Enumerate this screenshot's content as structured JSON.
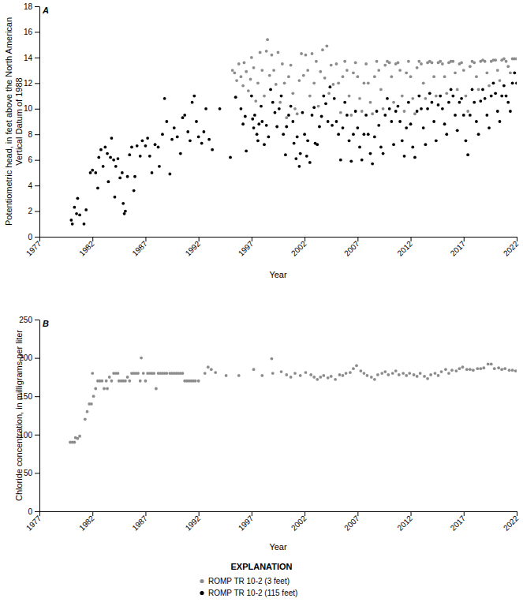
{
  "chart_data": [
    {
      "type": "scatter",
      "title": "A",
      "x_label": "Year",
      "y_label": "Potentiometric head, in feet above the North American Vertical Datum of 1988",
      "xlim": [
        1977,
        2022
      ],
      "xticks": [
        1977,
        1982,
        1987,
        1992,
        1997,
        2002,
        2007,
        2012,
        2017,
        2022
      ],
      "ylim": [
        0,
        18
      ],
      "yticks": [
        0,
        2,
        4,
        6,
        8,
        10,
        12,
        14,
        16,
        18
      ],
      "grid": false,
      "legend": "bottom",
      "legend_title": "EXPLANATION",
      "series": [
        {
          "name": "ROMP TR 10-2 (3 feet)",
          "color": "#8c8c8c",
          "marker": "circle",
          "x": [
            1995.2,
            1995.4,
            1995.6,
            1995.8,
            1996.0,
            1996.2,
            1996.3,
            1996.5,
            1996.7,
            1996.9,
            1997.0,
            1997.2,
            1997.4,
            1997.6,
            1997.8,
            1998.0,
            1998.2,
            1998.4,
            1998.5,
            1998.7,
            1998.9,
            1999.1,
            1999.3,
            1999.5,
            1999.7,
            1999.9,
            2000.1,
            2000.3,
            2000.5,
            2000.7,
            2000.9,
            2001.1,
            2001.3,
            2001.5,
            2001.7,
            2001.9,
            2002.1,
            2002.3,
            2002.5,
            2002.7,
            2002.9,
            2003.1,
            2003.3,
            2003.5,
            2003.7,
            2003.9,
            2004.1,
            2004.3,
            2004.5,
            2004.7,
            2005.0,
            2005.2,
            2005.4,
            2005.6,
            2005.8,
            2006.0,
            2006.2,
            2006.4,
            2006.6,
            2006.8,
            2007.0,
            2007.2,
            2007.4,
            2007.6,
            2007.8,
            2008.0,
            2008.2,
            2008.4,
            2008.6,
            2008.8,
            2009.0,
            2009.2,
            2009.4,
            2009.6,
            2009.8,
            2010.0,
            2010.2,
            2010.4,
            2010.6,
            2010.8,
            2011.0,
            2011.2,
            2011.4,
            2011.6,
            2011.8,
            2012.0,
            2012.2,
            2012.4,
            2012.6,
            2012.8,
            2013.0,
            2013.2,
            2013.4,
            2013.6,
            2013.8,
            2014.0,
            2014.2,
            2014.4,
            2014.6,
            2014.8,
            2015.0,
            2015.2,
            2015.4,
            2015.6,
            2015.8,
            2016.0,
            2016.2,
            2016.4,
            2016.6,
            2016.8,
            2017.0,
            2017.2,
            2017.4,
            2017.6,
            2017.8,
            2018.0,
            2018.2,
            2018.4,
            2018.6,
            2018.8,
            2019.0,
            2019.2,
            2019.4,
            2019.6,
            2019.8,
            2020.0,
            2020.2,
            2020.4,
            2020.6,
            2020.8,
            2021.0,
            2021.2,
            2021.4,
            2021.6,
            2021.8,
            2022.0
          ],
          "values": [
            13.0,
            12.8,
            12.2,
            13.5,
            12.5,
            11.8,
            13.6,
            12.9,
            11.4,
            12.3,
            14.0,
            13.2,
            10.6,
            12.0,
            14.4,
            13.0,
            11.0,
            14.5,
            15.4,
            12.6,
            14.2,
            13.0,
            11.9,
            14.4,
            10.5,
            13.5,
            12.0,
            9.3,
            12.5,
            13.4,
            11.2,
            10.0,
            9.6,
            12.2,
            14.3,
            12.6,
            14.2,
            13.0,
            11.0,
            14.3,
            12.0,
            13.7,
            10.2,
            12.9,
            14.6,
            12.4,
            14.9,
            11.2,
            13.4,
            11.9,
            13.5,
            12.0,
            9.7,
            12.5,
            13.7,
            13.0,
            11.0,
            9.5,
            12.8,
            13.6,
            12.5,
            10.8,
            9.8,
            12.0,
            13.5,
            12.0,
            10.5,
            9.6,
            12.5,
            13.7,
            13.0,
            11.5,
            10.0,
            13.4,
            13.7,
            13.6,
            12.5,
            10.5,
            13.5,
            13.6,
            13.0,
            11.0,
            9.8,
            12.8,
            13.7,
            12.5,
            10.8,
            9.6,
            13.2,
            13.7,
            13.5,
            12.0,
            10.8,
            13.6,
            13.7,
            13.6,
            12.5,
            11.0,
            13.6,
            13.7,
            13.5,
            12.5,
            11.2,
            13.6,
            13.7,
            13.7,
            12.8,
            11.5,
            13.5,
            13.6,
            13.0,
            11.0,
            9.8,
            13.3,
            13.7,
            13.6,
            12.5,
            11.5,
            13.7,
            13.8,
            13.7,
            12.8,
            11.8,
            13.7,
            13.8,
            13.8,
            13.0,
            12.2,
            13.8,
            13.9,
            13.7,
            13.3,
            12.8,
            13.9,
            13.9,
            13.9
          ]
        },
        {
          "name": "ROMP TR 10-2 (115 feet)",
          "color": "#000000",
          "marker": "circle",
          "x": [
            1980.0,
            1980.1,
            1980.3,
            1980.5,
            1980.6,
            1980.8,
            1981.2,
            1981.4,
            1981.8,
            1982.0,
            1982.3,
            1982.5,
            1982.6,
            1982.8,
            1983.0,
            1983.2,
            1983.4,
            1983.5,
            1983.7,
            1983.8,
            1984.0,
            1984.1,
            1984.2,
            1984.4,
            1984.6,
            1984.8,
            1984.9,
            1985.0,
            1985.1,
            1985.3,
            1985.5,
            1985.7,
            1985.9,
            1986.0,
            1986.2,
            1986.5,
            1986.7,
            1987.0,
            1987.2,
            1987.4,
            1987.6,
            1987.9,
            1988.2,
            1988.3,
            1988.6,
            1988.8,
            1989.0,
            1989.3,
            1989.5,
            1989.7,
            1990.0,
            1990.3,
            1990.5,
            1990.7,
            1991.0,
            1991.2,
            1991.4,
            1991.6,
            1991.8,
            1992.0,
            1992.3,
            1992.5,
            1992.7,
            1993.0,
            1993.3,
            1994.0,
            1995.0,
            1995.5,
            1996.0,
            1996.2,
            1996.4,
            1996.5,
            1997.0,
            1997.1,
            1997.2,
            1997.3,
            1997.5,
            1997.6,
            1997.7,
            1997.9,
            1998.0,
            1998.2,
            1998.4,
            1998.6,
            1998.8,
            1999.0,
            1999.2,
            1999.4,
            1999.6,
            1999.8,
            2000.0,
            2000.2,
            2000.3,
            2000.5,
            2000.7,
            2000.9,
            2001.0,
            2001.2,
            2001.3,
            2001.5,
            2001.6,
            2001.8,
            2002.0,
            2002.2,
            2002.3,
            2002.5,
            2002.7,
            2002.9,
            2003.0,
            2003.2,
            2003.4,
            2003.6,
            2003.8,
            2004.0,
            2004.2,
            2004.4,
            2004.6,
            2004.8,
            2005.0,
            2005.2,
            2005.4,
            2005.6,
            2005.8,
            2006.0,
            2006.2,
            2006.4,
            2006.6,
            2006.8,
            2007.0,
            2007.2,
            2007.4,
            2007.6,
            2007.8,
            2008.0,
            2008.2,
            2008.4,
            2008.6,
            2008.8,
            2009.0,
            2009.2,
            2009.4,
            2009.6,
            2009.8,
            2010.0,
            2010.2,
            2010.4,
            2010.6,
            2010.8,
            2011.0,
            2011.2,
            2011.4,
            2011.6,
            2011.8,
            2012.0,
            2012.2,
            2012.4,
            2012.6,
            2012.8,
            2013.0,
            2013.2,
            2013.4,
            2013.6,
            2013.8,
            2014.0,
            2014.2,
            2014.4,
            2014.6,
            2014.8,
            2015.0,
            2015.2,
            2015.4,
            2015.6,
            2015.8,
            2016.0,
            2016.2,
            2016.4,
            2016.6,
            2016.8,
            2017.0,
            2017.2,
            2017.4,
            2017.6,
            2017.8,
            2018.0,
            2018.2,
            2018.4,
            2018.6,
            2018.8,
            2019.0,
            2019.2,
            2019.4,
            2019.6,
            2019.8,
            2020.0,
            2020.2,
            2020.4,
            2020.6,
            2020.8,
            2021.0,
            2021.2,
            2021.4,
            2021.6,
            2021.8,
            2022.0
          ],
          "values": [
            1.3,
            1.0,
            2.3,
            1.8,
            3.0,
            1.7,
            1.0,
            2.1,
            5.0,
            5.2,
            5.0,
            3.8,
            6.2,
            6.8,
            5.5,
            7.0,
            6.5,
            4.3,
            6.2,
            7.7,
            6.0,
            3.1,
            5.5,
            6.1,
            4.6,
            5.0,
            2.6,
            1.8,
            2.0,
            4.7,
            6.4,
            7.0,
            3.6,
            4.7,
            7.1,
            6.3,
            7.5,
            7.1,
            7.7,
            6.3,
            5.0,
            7.2,
            7.0,
            5.5,
            8.0,
            10.8,
            9.0,
            4.9,
            7.6,
            8.5,
            7.8,
            6.5,
            9.3,
            9.5,
            8.2,
            7.5,
            10.5,
            11.0,
            9.0,
            7.8,
            7.3,
            8.2,
            10.0,
            7.6,
            6.8,
            10.0,
            6.2,
            10.9,
            10.0,
            8.8,
            9.4,
            6.7,
            11.0,
            9.2,
            8.5,
            9.5,
            8.0,
            7.5,
            8.8,
            10.2,
            9.0,
            7.2,
            8.7,
            7.8,
            11.5,
            10.5,
            9.7,
            8.6,
            10.0,
            11.0,
            8.0,
            6.4,
            8.6,
            9.5,
            10.2,
            9.0,
            7.3,
            6.1,
            7.8,
            5.5,
            6.5,
            9.7,
            8.0,
            6.3,
            7.5,
            5.8,
            9.5,
            10.1,
            7.3,
            7.2,
            8.6,
            9.4,
            11.0,
            10.4,
            9.0,
            11.7,
            8.7,
            10.8,
            9.0,
            8.0,
            6.0,
            8.5,
            10.5,
            9.5,
            7.5,
            5.9,
            8.0,
            9.8,
            8.5,
            7.0,
            6.0,
            8.0,
            9.5,
            8.0,
            6.5,
            5.7,
            7.8,
            9.8,
            8.7,
            7.0,
            6.5,
            9.5,
            10.8,
            10.0,
            9.0,
            7.2,
            9.8,
            10.2,
            9.0,
            7.5,
            6.3,
            8.5,
            10.5,
            8.8,
            7.0,
            6.2,
            9.8,
            11.0,
            10.0,
            8.5,
            7.2,
            10.0,
            11.2,
            10.5,
            9.0,
            7.5,
            10.3,
            11.0,
            10.0,
            8.8,
            8.0,
            10.5,
            11.5,
            11.0,
            9.5,
            8.3,
            10.5,
            10.8,
            9.5,
            7.5,
            6.4,
            9.5,
            11.5,
            10.5,
            9.0,
            8.0,
            10.6,
            11.5,
            10.8,
            9.5,
            8.5,
            11.0,
            12.0,
            11.2,
            9.8,
            9.0,
            11.0,
            11.8,
            11.0,
            10.5,
            9.8,
            12.0,
            12.8,
            12.0
          ]
        }
      ]
    },
    {
      "type": "scatter",
      "title": "B",
      "x_label": "Year",
      "y_label": "Chloride concentration, in milligrams per liter",
      "xlim": [
        1977,
        2022
      ],
      "xticks": [
        1977,
        1982,
        1987,
        1992,
        1997,
        2002,
        2007,
        2012,
        2017,
        2022
      ],
      "ylim": [
        0,
        250
      ],
      "yticks": [
        0,
        50,
        100,
        150,
        200,
        250
      ],
      "grid": false,
      "series": [
        {
          "color": "#8c8c8c",
          "marker": "circle",
          "x": [
            1979.9,
            1980.1,
            1980.3,
            1980.4,
            1980.6,
            1980.8,
            1981.3,
            1981.5,
            1981.7,
            1981.9,
            1982.0,
            1982.1,
            1982.3,
            1982.5,
            1982.7,
            1982.9,
            1983.1,
            1983.3,
            1983.4,
            1983.6,
            1983.8,
            1984.0,
            1984.2,
            1984.4,
            1984.5,
            1984.7,
            1984.9,
            1985.1,
            1985.3,
            1985.5,
            1985.7,
            1985.9,
            1986.1,
            1986.3,
            1986.5,
            1986.6,
            1986.8,
            1987.0,
            1987.2,
            1987.4,
            1987.6,
            1987.8,
            1988.0,
            1988.2,
            1988.4,
            1988.6,
            1988.8,
            1989.0,
            1989.3,
            1989.5,
            1989.7,
            1989.9,
            1990.1,
            1990.3,
            1990.5,
            1990.7,
            1990.9,
            1991.1,
            1991.3,
            1991.5,
            1991.7,
            1992.0,
            1992.6,
            1992.9,
            1993.2,
            1993.6,
            1994.6,
            1995.8,
            1997.2,
            1998.0,
            1998.9,
            1999.0,
            1999.8,
            2000.3,
            2000.7,
            2001.1,
            2001.6,
            2002.1,
            2002.6,
            2002.9,
            2003.2,
            2003.5,
            2003.8,
            2004.2,
            2004.5,
            2004.9,
            2005.3,
            2005.6,
            2005.9,
            2006.3,
            2006.6,
            2006.9,
            2007.3,
            2007.6,
            2007.9,
            2008.3,
            2008.6,
            2008.9,
            2009.3,
            2009.6,
            2009.9,
            2010.3,
            2010.6,
            2010.9,
            2011.3,
            2011.6,
            2011.9,
            2012.3,
            2012.6,
            2012.9,
            2013.3,
            2013.6,
            2013.9,
            2014.3,
            2014.6,
            2014.9,
            2015.3,
            2015.6,
            2015.9,
            2016.3,
            2016.6,
            2016.9,
            2017.3,
            2017.6,
            2017.9,
            2018.3,
            2018.6,
            2018.9,
            2019.3,
            2019.6,
            2019.9,
            2020.3,
            2020.6,
            2020.9,
            2021.3,
            2021.6,
            2021.9
          ],
          "values": [
            90,
            90,
            90,
            96,
            95,
            98,
            120,
            130,
            140,
            140,
            180,
            150,
            160,
            170,
            170,
            170,
            160,
            170,
            160,
            175,
            170,
            180,
            180,
            180,
            170,
            170,
            170,
            170,
            175,
            170,
            180,
            180,
            180,
            180,
            170,
            200,
            180,
            170,
            180,
            180,
            180,
            180,
            160,
            180,
            180,
            180,
            180,
            180,
            180,
            180,
            180,
            180,
            180,
            180,
            180,
            170,
            170,
            170,
            170,
            170,
            170,
            170,
            180,
            188,
            185,
            181,
            177,
            177,
            185,
            177,
            199,
            180,
            182,
            178,
            175,
            180,
            177,
            181,
            178,
            175,
            172,
            175,
            177,
            174,
            176,
            172,
            178,
            177,
            180,
            181,
            186,
            190,
            183,
            180,
            177,
            175,
            172,
            178,
            180,
            182,
            178,
            180,
            183,
            178,
            180,
            177,
            180,
            178,
            176,
            180,
            176,
            173,
            178,
            180,
            177,
            182,
            185,
            180,
            184,
            183,
            186,
            188,
            185,
            185,
            184,
            186,
            186,
            187,
            192,
            192,
            186,
            187,
            185,
            186,
            184,
            184,
            183
          ]
        }
      ]
    }
  ]
}
